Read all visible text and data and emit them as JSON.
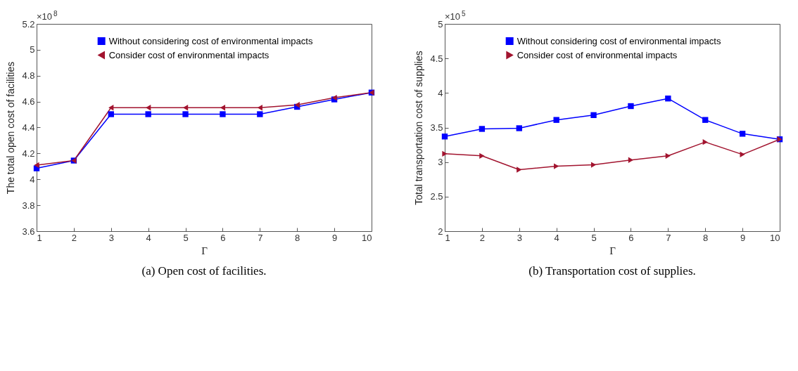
{
  "chart_data": [
    {
      "type": "line",
      "xlabel": "Γ",
      "ylabel": "The total open cost of facilities",
      "x": [
        1,
        2,
        3,
        4,
        5,
        6,
        7,
        8,
        9,
        10
      ],
      "series": [
        {
          "name": "Without considering cost of environmental impacts",
          "color": "#0000ff",
          "marker": "square",
          "values": [
            4.085,
            4.145,
            4.503,
            4.503,
            4.503,
            4.503,
            4.503,
            4.56,
            4.617,
            4.67
          ]
        },
        {
          "name": "Consider cost of environmental impacts",
          "color": "#a2142f",
          "marker": "triangle-left",
          "values": [
            4.11,
            4.145,
            4.553,
            4.553,
            4.553,
            4.553,
            4.553,
            4.575,
            4.63,
            4.67
          ]
        }
      ],
      "xlim": [
        1,
        10
      ],
      "xticks": [
        1,
        2,
        3,
        4,
        5,
        6,
        7,
        8,
        9,
        10
      ],
      "ylim": [
        3.6,
        5.2
      ],
      "yticks": [
        3.6,
        3.8,
        4,
        4.2,
        4.4,
        4.6,
        4.8,
        5,
        5.2
      ],
      "grid": false,
      "legend": "top",
      "line_style": "solid",
      "annotations": [
        "×10$^{8}$",
        "(a)  Open cost of facilities."
      ]
    },
    {
      "type": "line",
      "xlabel": "Γ",
      "ylabel": "Total transportation cost of supplies",
      "x": [
        1,
        2,
        3,
        4,
        5,
        6,
        7,
        8,
        9,
        10
      ],
      "series": [
        {
          "name": "Without considering cost of environmental impacts",
          "color": "#0000ff",
          "marker": "square",
          "values": [
            3.37,
            3.48,
            3.49,
            3.61,
            3.68,
            3.81,
            3.92,
            3.61,
            3.41,
            3.33
          ]
        },
        {
          "name": "Consider cost of environmental impacts",
          "color": "#a2142f",
          "marker": "triangle-right",
          "values": [
            3.12,
            3.09,
            2.89,
            2.94,
            2.96,
            3.03,
            3.09,
            3.29,
            3.11,
            3.33
          ]
        }
      ],
      "xlim": [
        1,
        10
      ],
      "xticks": [
        1,
        2,
        3,
        4,
        5,
        6,
        7,
        8,
        9,
        10
      ],
      "ylim": [
        2,
        5
      ],
      "yticks": [
        2,
        2.5,
        3,
        3.5,
        4,
        4.5,
        5
      ],
      "grid": false,
      "legend": "top",
      "line_style": "solid",
      "annotations": [
        "×10$^{5}$",
        "(b)  Transportation cost of supplies."
      ]
    }
  ]
}
